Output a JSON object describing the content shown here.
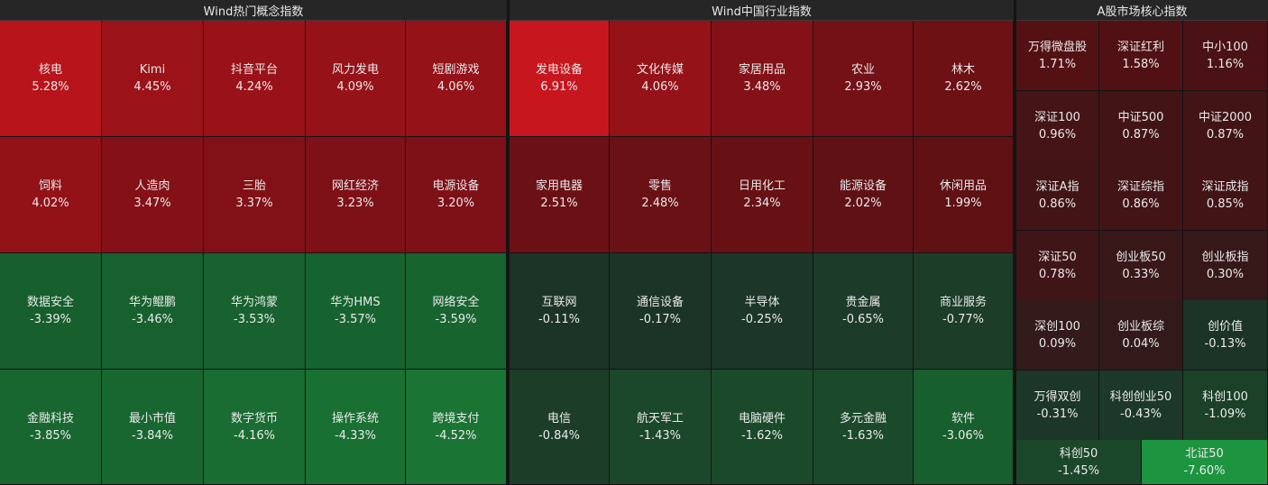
{
  "panels": [
    {
      "title": "Wind热门概念指数",
      "tiles": [
        {
          "name": "核电",
          "pct": "5.28%",
          "color": "#b8141b"
        },
        {
          "name": "Kimi",
          "pct": "4.45%",
          "color": "#9b1218"
        },
        {
          "name": "抖音平台",
          "pct": "4.24%",
          "color": "#9a1219"
        },
        {
          "name": "风力发电",
          "pct": "4.09%",
          "color": "#961219"
        },
        {
          "name": "短剧游戏",
          "pct": "4.06%",
          "color": "#951219"
        },
        {
          "name": "饲料",
          "pct": "4.02%",
          "color": "#921218"
        },
        {
          "name": "人造肉",
          "pct": "3.47%",
          "color": "#831117"
        },
        {
          "name": "三胎",
          "pct": "3.37%",
          "color": "#821117"
        },
        {
          "name": "网红经济",
          "pct": "3.23%",
          "color": "#7e1117"
        },
        {
          "name": "电源设备",
          "pct": "3.20%",
          "color": "#7d1117"
        },
        {
          "name": "数据安全",
          "pct": "-3.39%",
          "color": "#175f2d"
        },
        {
          "name": "华为鲲鹏",
          "pct": "-3.46%",
          "color": "#17612e"
        },
        {
          "name": "华为鸿蒙",
          "pct": "-3.53%",
          "color": "#17622e"
        },
        {
          "name": "华为HMS",
          "pct": "-3.57%",
          "color": "#17632f"
        },
        {
          "name": "网络安全",
          "pct": "-3.59%",
          "color": "#17642f"
        },
        {
          "name": "金融科技",
          "pct": "-3.85%",
          "color": "#186730"
        },
        {
          "name": "最小市值",
          "pct": "-3.84%",
          "color": "#186730"
        },
        {
          "name": "数字货币",
          "pct": "-4.16%",
          "color": "#196d32"
        },
        {
          "name": "操作系统",
          "pct": "-4.33%",
          "color": "#197033"
        },
        {
          "name": "跨境支付",
          "pct": "-4.52%",
          "color": "#1a7434"
        }
      ]
    },
    {
      "title": "Wind中国行业指数",
      "tiles": [
        {
          "name": "发电设备",
          "pct": "6.91%",
          "color": "#c8161f"
        },
        {
          "name": "文化传媒",
          "pct": "4.06%",
          "color": "#951219"
        },
        {
          "name": "家居用品",
          "pct": "3.48%",
          "color": "#841117"
        },
        {
          "name": "农业",
          "pct": "2.93%",
          "color": "#741116"
        },
        {
          "name": "林木",
          "pct": "2.62%",
          "color": "#6d1115"
        },
        {
          "name": "家用电器",
          "pct": "2.51%",
          "color": "#6b1115"
        },
        {
          "name": "零售",
          "pct": "2.48%",
          "color": "#6a1115"
        },
        {
          "name": "日用化工",
          "pct": "2.34%",
          "color": "#671115"
        },
        {
          "name": "能源设备",
          "pct": "2.02%",
          "color": "#601115"
        },
        {
          "name": "休闲用品",
          "pct": "1.99%",
          "color": "#5f1114"
        },
        {
          "name": "互联网",
          "pct": "-0.11%",
          "color": "#1c3327"
        },
        {
          "name": "通信设备",
          "pct": "-0.17%",
          "color": "#1c3427"
        },
        {
          "name": "半导体",
          "pct": "-0.25%",
          "color": "#1c3627"
        },
        {
          "name": "贵金属",
          "pct": "-0.65%",
          "color": "#1c3b28"
        },
        {
          "name": "商业服务",
          "pct": "-0.77%",
          "color": "#1c3d28"
        },
        {
          "name": "电信",
          "pct": "-0.84%",
          "color": "#1c3e29"
        },
        {
          "name": "航天军工",
          "pct": "-1.43%",
          "color": "#1b472a"
        },
        {
          "name": "电脑硬件",
          "pct": "-1.62%",
          "color": "#1b4a2b"
        },
        {
          "name": "多元金融",
          "pct": "-1.63%",
          "color": "#1b4a2b"
        },
        {
          "name": "软件",
          "pct": "-3.06%",
          "color": "#175f2d"
        }
      ]
    },
    {
      "title": "A股市场核心指数",
      "tiles": [
        {
          "name": "万得微盘股",
          "pct": "1.71%",
          "color": "#541114"
        },
        {
          "name": "深证红利",
          "pct": "1.58%",
          "color": "#511114"
        },
        {
          "name": "中小100",
          "pct": "1.16%",
          "color": "#4a1214"
        },
        {
          "name": "深证100",
          "pct": "0.96%",
          "color": "#441416"
        },
        {
          "name": "中证500",
          "pct": "0.87%",
          "color": "#421416"
        },
        {
          "name": "中证2000",
          "pct": "0.87%",
          "color": "#421416"
        },
        {
          "name": "深证A指",
          "pct": "0.86%",
          "color": "#421416"
        },
        {
          "name": "深证综指",
          "pct": "0.86%",
          "color": "#421416"
        },
        {
          "name": "深证成指",
          "pct": "0.85%",
          "color": "#421416"
        },
        {
          "name": "深证50",
          "pct": "0.78%",
          "color": "#401517"
        },
        {
          "name": "创业板50",
          "pct": "0.33%",
          "color": "#381819"
        },
        {
          "name": "创业板指",
          "pct": "0.30%",
          "color": "#371819"
        },
        {
          "name": "深创100",
          "pct": "0.09%",
          "color": "#331a1b"
        },
        {
          "name": "创业板综",
          "pct": "0.04%",
          "color": "#321a1b"
        },
        {
          "name": "创价值",
          "pct": "-0.13%",
          "color": "#1c3327"
        },
        {
          "name": "万得双创",
          "pct": "-0.31%",
          "color": "#1c3627"
        },
        {
          "name": "科创创业50",
          "pct": "-0.43%",
          "color": "#1c3828"
        },
        {
          "name": "科创100",
          "pct": "-1.09%",
          "color": "#1b4129"
        },
        {
          "name": "科创50",
          "pct": "-1.45%",
          "color": "#1b472a"
        },
        {
          "name": "北证50",
          "pct": "-7.60%",
          "color": "#1d9440"
        }
      ]
    }
  ]
}
